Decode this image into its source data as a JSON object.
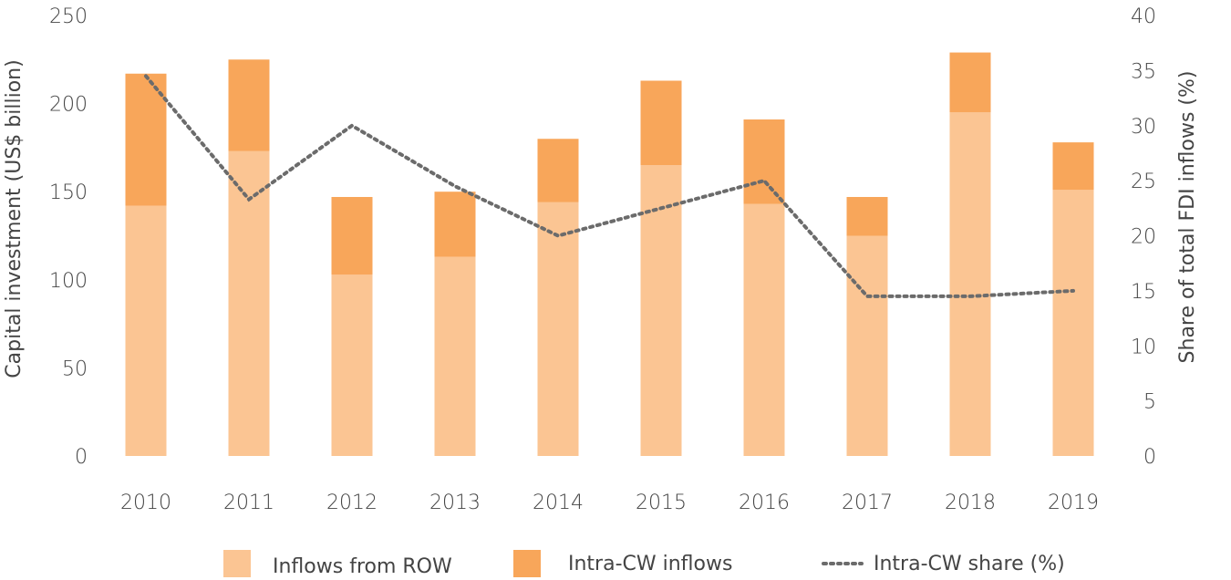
{
  "chart_data": {
    "type": "bar",
    "stacked": true,
    "categories": [
      "2010",
      "2011",
      "2012",
      "2013",
      "2014",
      "2015",
      "2016",
      "2017",
      "2018",
      "2019"
    ],
    "series": [
      {
        "name": "Inflows from ROW",
        "kind": "bar",
        "axis": "left",
        "color": "#fbc593",
        "values": [
          142,
          173,
          103,
          113,
          144,
          165,
          143,
          125,
          195,
          151
        ]
      },
      {
        "name": "Intra-CW inflows",
        "kind": "bar",
        "axis": "left",
        "color": "#f8a65a",
        "values": [
          75,
          52,
          44,
          37,
          36,
          48,
          48,
          22,
          34,
          27
        ]
      },
      {
        "name": "Intra-CW share (%)",
        "kind": "line",
        "line_style": "dotted",
        "axis": "right",
        "color": "#6b6b6b",
        "values": [
          34.5,
          23.3,
          30.0,
          24.5,
          20.0,
          22.5,
          25.0,
          14.5,
          14.5,
          15.0
        ]
      }
    ],
    "ylabel": "Capital investment (US$ billion)",
    "ylabel_right": "Share of total FDI inflows (%)",
    "xlabel": "",
    "ylim": [
      0,
      250
    ],
    "ylim_right": [
      0,
      40
    ],
    "yticks": [
      "0",
      "50",
      "100",
      "150",
      "200",
      "250"
    ],
    "yticks_right": [
      "0",
      "5",
      "10",
      "15",
      "20",
      "25",
      "30",
      "35",
      "40"
    ],
    "grid": false,
    "legend": "bottom"
  }
}
